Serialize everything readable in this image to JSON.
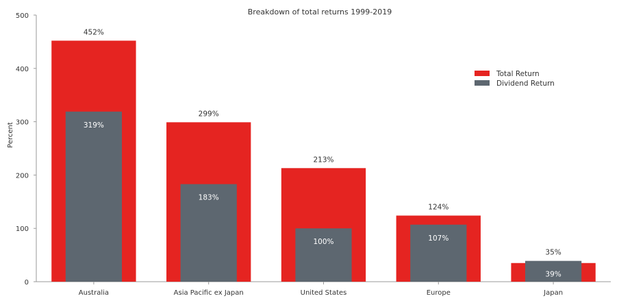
{
  "chart_data": {
    "type": "bar",
    "title": "Breakdown of total returns 1999-2019",
    "ylabel": "Percent",
    "xlabel": "",
    "ylim": [
      0,
      500
    ],
    "yticks": [
      0,
      100,
      200,
      300,
      400,
      500
    ],
    "categories": [
      "Australia",
      "Asia Pacific ex Japan",
      "United States",
      "Europe",
      "Japan"
    ],
    "series": [
      {
        "name": "Total Return",
        "color": "#e52421",
        "values": [
          452,
          299,
          213,
          124,
          35
        ],
        "labels": [
          "452%",
          "299%",
          "213%",
          "124%",
          "35%"
        ]
      },
      {
        "name": "Dividend Return",
        "color": "#5d6770",
        "values": [
          319,
          183,
          100,
          107,
          39
        ],
        "labels": [
          "319%",
          "183%",
          "100%",
          "107%",
          "39%"
        ]
      }
    ],
    "legend_position": "top-right",
    "grid": false
  }
}
